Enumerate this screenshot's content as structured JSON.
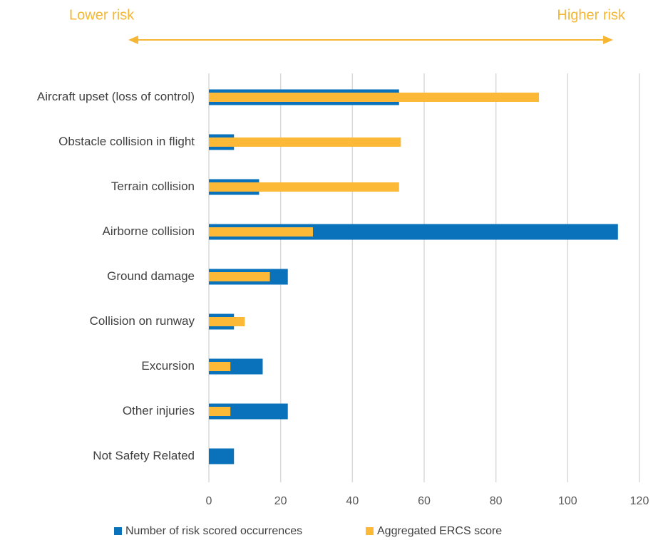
{
  "chart_data": {
    "type": "bar",
    "orientation": "horizontal",
    "annotations": [
      "Lower risk",
      "Higher risk"
    ],
    "categories": [
      "Aircraft upset (loss of control)",
      "Obstacle collision in flight",
      "Terrain collision",
      "Airborne collision",
      "Ground damage",
      "Collision on runway",
      "Excursion",
      "Other injuries",
      "Not Safety Related"
    ],
    "series": [
      {
        "name": "Number of risk scored occurrences",
        "color": "#0a72ba",
        "values": [
          53,
          7,
          14,
          114,
          22,
          7,
          15,
          22,
          7
        ]
      },
      {
        "name": "Aggregated ERCS score",
        "color": "#fbb937",
        "values": [
          92,
          53.5,
          53,
          29,
          17,
          10,
          6,
          6,
          null
        ]
      }
    ],
    "xlim": [
      0,
      120
    ],
    "xticks": [
      0,
      20,
      40,
      60,
      80,
      100,
      120
    ],
    "grid": true,
    "legend": "bottom"
  }
}
